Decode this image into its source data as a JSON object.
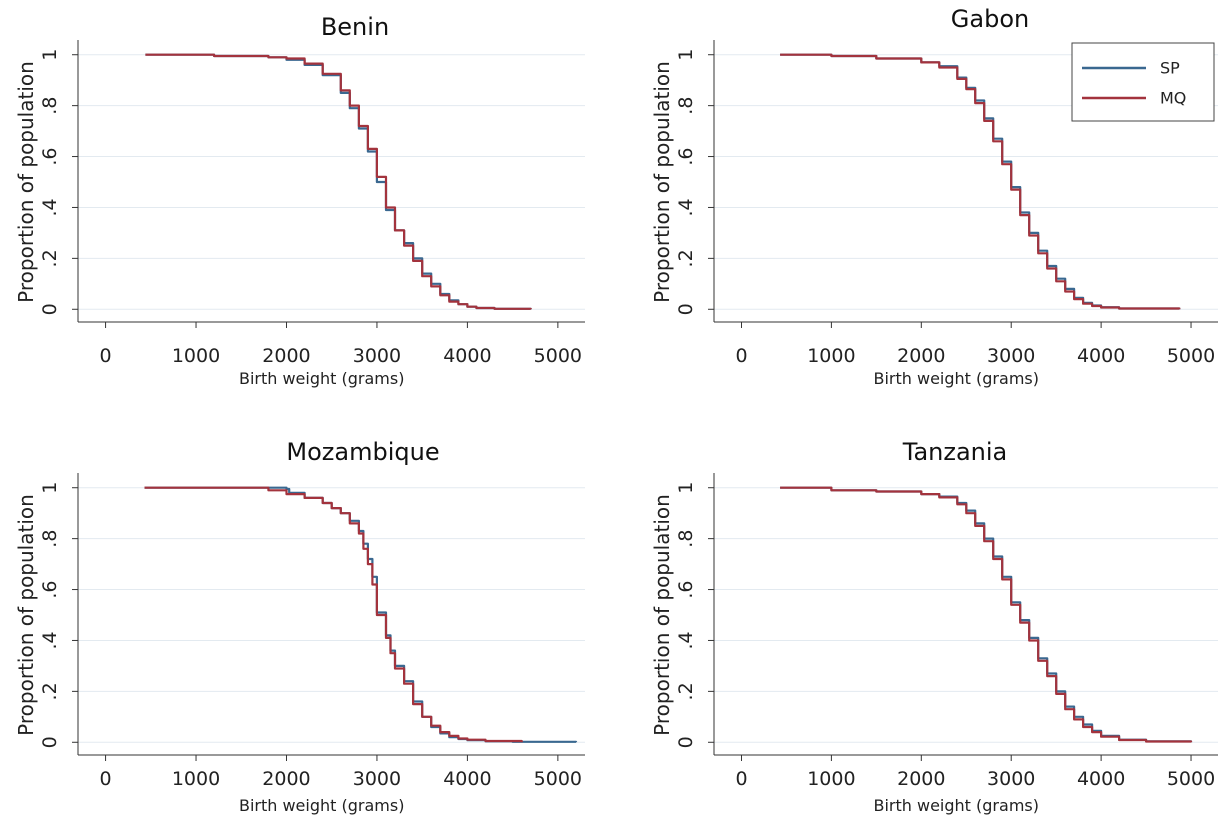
{
  "colors": {
    "SP": "#3a6890",
    "MQ": "#a3333d",
    "grid": "#e3eaf0",
    "axis": "#333333"
  },
  "legend": {
    "entries": [
      "SP",
      "MQ"
    ],
    "panel": 1,
    "placement": "top-right"
  },
  "chart_data": [
    {
      "type": "line",
      "title": "Benin",
      "xlabel": "Birth weight (grams)",
      "ylabel": "Proportion of population",
      "xlim": [
        -150,
        5300
      ],
      "ylim": [
        -0.05,
        1.05
      ],
      "xticks": [
        0,
        1000,
        2000,
        3000,
        4000,
        5000
      ],
      "xtick_labels": [
        "0",
        "1000",
        "2000",
        "3000",
        "4000",
        "5000"
      ],
      "yticks": [
        0,
        0.2,
        0.4,
        0.6,
        0.8,
        1
      ],
      "ytick_labels": [
        "0",
        ".2",
        ".4",
        ".6",
        ".8",
        "1"
      ],
      "grid": "horizontal",
      "series": [
        {
          "name": "SP",
          "x": [
            440,
            1200,
            1800,
            2000,
            2200,
            2400,
            2600,
            2700,
            2800,
            2900,
            3000,
            3100,
            3200,
            3300,
            3400,
            3500,
            3600,
            3700,
            3800,
            3900,
            4000,
            4100,
            4300,
            4700
          ],
          "y": [
            1,
            0.995,
            0.99,
            0.98,
            0.96,
            0.92,
            0.85,
            0.79,
            0.71,
            0.62,
            0.5,
            0.39,
            0.31,
            0.26,
            0.2,
            0.14,
            0.1,
            0.06,
            0.035,
            0.02,
            0.01,
            0.005,
            0.002,
            0
          ]
        },
        {
          "name": "MQ",
          "x": [
            440,
            1200,
            1800,
            2000,
            2200,
            2400,
            2600,
            2700,
            2800,
            2900,
            3000,
            3100,
            3200,
            3300,
            3400,
            3500,
            3600,
            3700,
            3800,
            3900,
            4000,
            4100,
            4300,
            4700
          ],
          "y": [
            1,
            0.995,
            0.99,
            0.985,
            0.965,
            0.925,
            0.86,
            0.8,
            0.72,
            0.63,
            0.52,
            0.4,
            0.31,
            0.25,
            0.19,
            0.13,
            0.09,
            0.055,
            0.03,
            0.02,
            0.01,
            0.005,
            0.002,
            0
          ]
        }
      ]
    },
    {
      "type": "line",
      "title": "Gabon",
      "xlabel": "Birth weight (grams)",
      "ylabel": "Proportion of population",
      "xlim": [
        -150,
        5300
      ],
      "ylim": [
        -0.05,
        1.05
      ],
      "xticks": [
        0,
        1000,
        2000,
        3000,
        4000,
        5000
      ],
      "xtick_labels": [
        "0",
        "1000",
        "2000",
        "3000",
        "4000",
        "5000"
      ],
      "yticks": [
        0,
        0.2,
        0.4,
        0.6,
        0.8,
        1
      ],
      "ytick_labels": [
        "0",
        ".2",
        ".4",
        ".6",
        ".8",
        "1"
      ],
      "grid": "horizontal",
      "series": [
        {
          "name": "SP",
          "x": [
            430,
            1000,
            1500,
            2000,
            2200,
            2400,
            2500,
            2600,
            2700,
            2800,
            2900,
            3000,
            3100,
            3200,
            3300,
            3400,
            3500,
            3600,
            3700,
            3800,
            3900,
            4000,
            4200,
            4870
          ],
          "y": [
            1,
            0.995,
            0.985,
            0.97,
            0.955,
            0.91,
            0.87,
            0.82,
            0.75,
            0.67,
            0.58,
            0.48,
            0.38,
            0.3,
            0.23,
            0.17,
            0.12,
            0.08,
            0.045,
            0.025,
            0.015,
            0.008,
            0.003,
            0
          ]
        },
        {
          "name": "MQ",
          "x": [
            430,
            1000,
            1500,
            2000,
            2200,
            2400,
            2500,
            2600,
            2700,
            2800,
            2900,
            3000,
            3100,
            3200,
            3300,
            3400,
            3500,
            3600,
            3700,
            3800,
            3900,
            4000,
            4200,
            4870
          ],
          "y": [
            1,
            0.995,
            0.985,
            0.97,
            0.95,
            0.905,
            0.865,
            0.81,
            0.74,
            0.66,
            0.57,
            0.47,
            0.37,
            0.29,
            0.22,
            0.16,
            0.11,
            0.07,
            0.04,
            0.022,
            0.013,
            0.007,
            0.003,
            0
          ]
        }
      ]
    },
    {
      "type": "line",
      "title": "Mozambique",
      "xlabel": "Birth weight (grams)",
      "ylabel": "Proportion of population",
      "xlim": [
        -150,
        5300
      ],
      "ylim": [
        -0.05,
        1.05
      ],
      "xticks": [
        0,
        1000,
        2000,
        3000,
        4000,
        5000
      ],
      "xtick_labels": [
        "0",
        "1000",
        "2000",
        "3000",
        "4000",
        "5000"
      ],
      "yticks": [
        0,
        0.2,
        0.4,
        0.6,
        0.8,
        1
      ],
      "ytick_labels": [
        "0",
        ".2",
        ".4",
        ".6",
        ".8",
        "1"
      ],
      "grid": "horizontal",
      "series": [
        {
          "name": "SP",
          "x": [
            430,
            1500,
            1990,
            2000,
            2030,
            2200,
            2400,
            2500,
            2600,
            2700,
            2800,
            2850,
            2900,
            2950,
            3000,
            3100,
            3150,
            3200,
            3300,
            3400,
            3500,
            3600,
            3700,
            3800,
            3900,
            4000,
            4200,
            4500,
            5200
          ],
          "y": [
            1,
            1,
            1,
            0.995,
            0.98,
            0.96,
            0.94,
            0.92,
            0.9,
            0.87,
            0.83,
            0.78,
            0.72,
            0.65,
            0.51,
            0.42,
            0.36,
            0.3,
            0.24,
            0.16,
            0.1,
            0.06,
            0.035,
            0.02,
            0.013,
            0.008,
            0.004,
            0.002,
            0
          ]
        },
        {
          "name": "MQ",
          "x": [
            430,
            1500,
            1800,
            2000,
            2200,
            2400,
            2500,
            2600,
            2700,
            2800,
            2850,
            2900,
            2950,
            3000,
            3100,
            3150,
            3200,
            3300,
            3400,
            3500,
            3600,
            3700,
            3800,
            3900,
            4000,
            4200,
            4600
          ],
          "y": [
            1,
            1,
            0.99,
            0.975,
            0.96,
            0.94,
            0.92,
            0.9,
            0.86,
            0.82,
            0.76,
            0.7,
            0.62,
            0.5,
            0.41,
            0.35,
            0.29,
            0.23,
            0.15,
            0.1,
            0.065,
            0.04,
            0.025,
            0.015,
            0.01,
            0.005,
            0
          ]
        }
      ]
    },
    {
      "type": "line",
      "title": "Tanzania",
      "xlabel": "Birth weight (grams)",
      "ylabel": "Proportion of population",
      "xlim": [
        -150,
        5300
      ],
      "ylim": [
        -0.05,
        1.05
      ],
      "xticks": [
        0,
        1000,
        2000,
        3000,
        4000,
        5000
      ],
      "xtick_labels": [
        "0",
        "1000",
        "2000",
        "3000",
        "4000",
        "5000"
      ],
      "yticks": [
        0,
        0.2,
        0.4,
        0.6,
        0.8,
        1
      ],
      "ytick_labels": [
        "0",
        ".2",
        ".4",
        ".6",
        ".8",
        "1"
      ],
      "grid": "horizontal",
      "series": [
        {
          "name": "SP",
          "x": [
            430,
            1000,
            1500,
            2000,
            2200,
            2400,
            2500,
            2600,
            2700,
            2800,
            2900,
            3000,
            3100,
            3200,
            3300,
            3400,
            3500,
            3600,
            3700,
            3800,
            3900,
            4000,
            4200,
            4500,
            5000
          ],
          "y": [
            1,
            0.99,
            0.985,
            0.975,
            0.965,
            0.94,
            0.91,
            0.86,
            0.8,
            0.73,
            0.65,
            0.55,
            0.48,
            0.41,
            0.33,
            0.27,
            0.2,
            0.14,
            0.1,
            0.07,
            0.045,
            0.025,
            0.01,
            0.004,
            0
          ]
        },
        {
          "name": "MQ",
          "x": [
            430,
            1000,
            1500,
            2000,
            2200,
            2400,
            2500,
            2600,
            2700,
            2800,
            2900,
            3000,
            3100,
            3200,
            3300,
            3400,
            3500,
            3600,
            3700,
            3800,
            3900,
            4000,
            4200,
            4500,
            5000
          ],
          "y": [
            1,
            0.99,
            0.985,
            0.975,
            0.962,
            0.935,
            0.9,
            0.85,
            0.79,
            0.72,
            0.64,
            0.54,
            0.47,
            0.4,
            0.32,
            0.26,
            0.19,
            0.13,
            0.09,
            0.06,
            0.04,
            0.022,
            0.009,
            0.003,
            0
          ]
        }
      ]
    }
  ]
}
